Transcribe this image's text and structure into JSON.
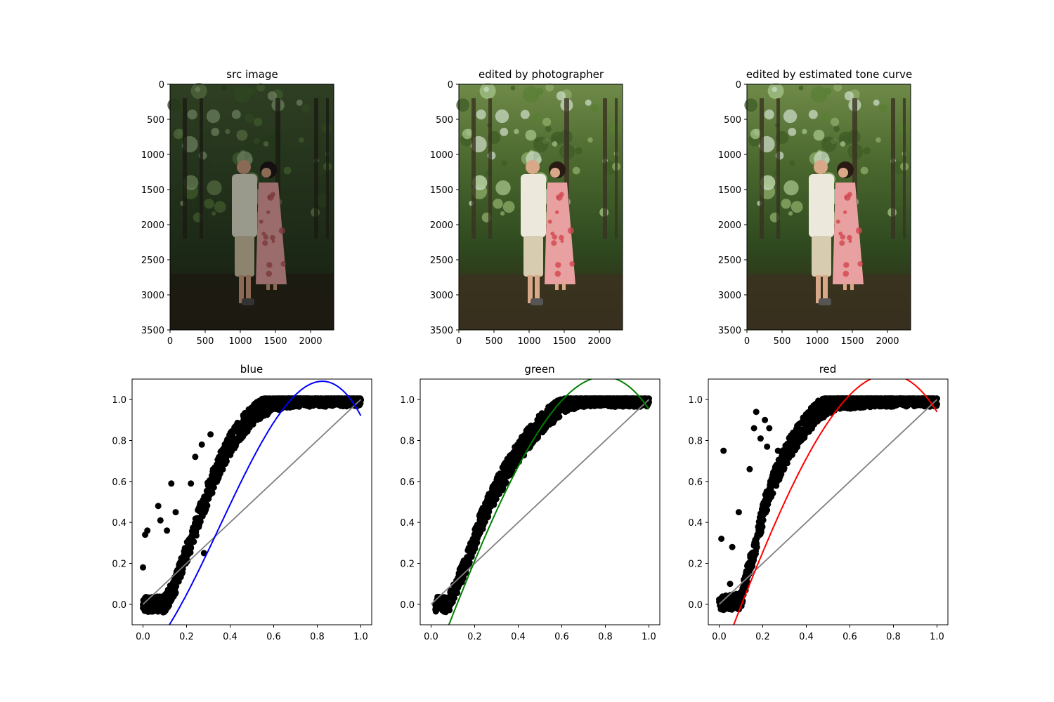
{
  "chart_data": [
    {
      "type": "image",
      "title": "src image",
      "xlim": [
        0,
        2330
      ],
      "ylim": [
        3500,
        0
      ],
      "xticks": [
        "0",
        "500",
        "1000",
        "1500",
        "2000"
      ],
      "yticks": [
        "0",
        "500",
        "1000",
        "1500",
        "2000",
        "2500",
        "3000",
        "3500"
      ],
      "brightness": "dark"
    },
    {
      "type": "image",
      "title": "edited by photographer",
      "xlim": [
        0,
        2330
      ],
      "ylim": [
        3500,
        0
      ],
      "xticks": [
        "0",
        "500",
        "1000",
        "1500",
        "2000"
      ],
      "yticks": [
        "0",
        "500",
        "1000",
        "1500",
        "2000",
        "2500",
        "3000",
        "3500"
      ],
      "brightness": "bright"
    },
    {
      "type": "image",
      "title": "edited by estimated tone curve",
      "xlim": [
        0,
        2330
      ],
      "ylim": [
        3500,
        0
      ],
      "xticks": [
        "0",
        "500",
        "1000",
        "1500",
        "2000"
      ],
      "yticks": [
        "0",
        "500",
        "1000",
        "1500",
        "2000",
        "2500",
        "3000",
        "3500"
      ],
      "brightness": "bright"
    },
    {
      "type": "scatter",
      "title": "blue",
      "xlim": [
        -0.05,
        1.05
      ],
      "ylim": [
        -0.1,
        1.1
      ],
      "xticks": [
        "0.0",
        "0.2",
        "0.4",
        "0.6",
        "0.8",
        "1.0"
      ],
      "yticks": [
        "0.0",
        "0.2",
        "0.4",
        "0.6",
        "0.8",
        "1.0"
      ],
      "curve_color": "#0000ff",
      "scatter_color": "#000000",
      "identity_color": "#808080",
      "fit_poly": [
        -0.267,
        0.996,
        3.583,
        -3.391
      ],
      "points_spine": [
        [
          0.0,
          0.0
        ],
        [
          0.1,
          0.0
        ],
        [
          0.15,
          0.1
        ],
        [
          0.2,
          0.25
        ],
        [
          0.25,
          0.4
        ],
        [
          0.3,
          0.55
        ],
        [
          0.35,
          0.68
        ],
        [
          0.4,
          0.78
        ],
        [
          0.45,
          0.86
        ],
        [
          0.5,
          0.92
        ],
        [
          0.55,
          0.96
        ],
        [
          0.6,
          0.99
        ],
        [
          0.7,
          1.0
        ],
        [
          1.0,
          1.0
        ]
      ],
      "outliers": [
        [
          0.0,
          0.18
        ],
        [
          0.01,
          0.34
        ],
        [
          0.02,
          0.36
        ],
        [
          0.07,
          0.48
        ],
        [
          0.08,
          0.41
        ],
        [
          0.13,
          0.59
        ],
        [
          0.15,
          0.45
        ],
        [
          0.22,
          0.59
        ],
        [
          0.24,
          0.72
        ],
        [
          0.27,
          0.78
        ],
        [
          0.28,
          0.25
        ],
        [
          0.31,
          0.83
        ],
        [
          0.11,
          0.36
        ]
      ]
    },
    {
      "type": "scatter",
      "title": "green",
      "xlim": [
        -0.05,
        1.05
      ],
      "ylim": [
        -0.1,
        1.1
      ],
      "xticks": [
        "0.0",
        "0.2",
        "0.4",
        "0.6",
        "0.8",
        "1.0"
      ],
      "yticks": [
        "0.0",
        "0.2",
        "0.4",
        "0.6",
        "0.8",
        "1.0"
      ],
      "curve_color": "#008000",
      "scatter_color": "#000000",
      "identity_color": "#808080",
      "fit_poly": [
        -0.322,
        2.736,
        -0.063,
        -1.398
      ],
      "points_spine": [
        [
          0.02,
          0.0
        ],
        [
          0.08,
          0.0
        ],
        [
          0.12,
          0.1
        ],
        [
          0.17,
          0.22
        ],
        [
          0.22,
          0.38
        ],
        [
          0.28,
          0.52
        ],
        [
          0.34,
          0.64
        ],
        [
          0.4,
          0.74
        ],
        [
          0.46,
          0.83
        ],
        [
          0.52,
          0.9
        ],
        [
          0.58,
          0.95
        ],
        [
          0.63,
          0.99
        ],
        [
          0.7,
          1.0
        ],
        [
          1.0,
          1.0
        ]
      ],
      "outliers": []
    },
    {
      "type": "scatter",
      "title": "red",
      "xlim": [
        -0.05,
        1.05
      ],
      "ylim": [
        -0.1,
        1.1
      ],
      "xticks": [
        "0.0",
        "0.2",
        "0.4",
        "0.6",
        "0.8",
        "1.0"
      ],
      "yticks": [
        "0.0",
        "0.2",
        "0.4",
        "0.6",
        "0.8",
        "1.0"
      ],
      "curve_color": "#ff0000",
      "scatter_color": "#000000",
      "identity_color": "#808080",
      "fit_poly": [
        -0.284,
        2.783,
        -0.181,
        -1.378
      ],
      "points_spine": [
        [
          0.0,
          0.0
        ],
        [
          0.1,
          0.02
        ],
        [
          0.13,
          0.15
        ],
        [
          0.17,
          0.3
        ],
        [
          0.21,
          0.48
        ],
        [
          0.25,
          0.6
        ],
        [
          0.3,
          0.72
        ],
        [
          0.35,
          0.81
        ],
        [
          0.4,
          0.88
        ],
        [
          0.45,
          0.94
        ],
        [
          0.5,
          0.98
        ],
        [
          0.55,
          1.0
        ],
        [
          1.0,
          1.0
        ]
      ],
      "outliers": [
        [
          0.01,
          0.32
        ],
        [
          0.02,
          0.75
        ],
        [
          0.06,
          0.28
        ],
        [
          0.09,
          0.45
        ],
        [
          0.14,
          0.66
        ],
        [
          0.16,
          0.86
        ],
        [
          0.17,
          0.94
        ],
        [
          0.19,
          0.81
        ],
        [
          0.21,
          0.9
        ],
        [
          0.22,
          0.77
        ],
        [
          0.23,
          0.86
        ],
        [
          0.27,
          0.75
        ],
        [
          0.05,
          0.1
        ]
      ]
    }
  ]
}
